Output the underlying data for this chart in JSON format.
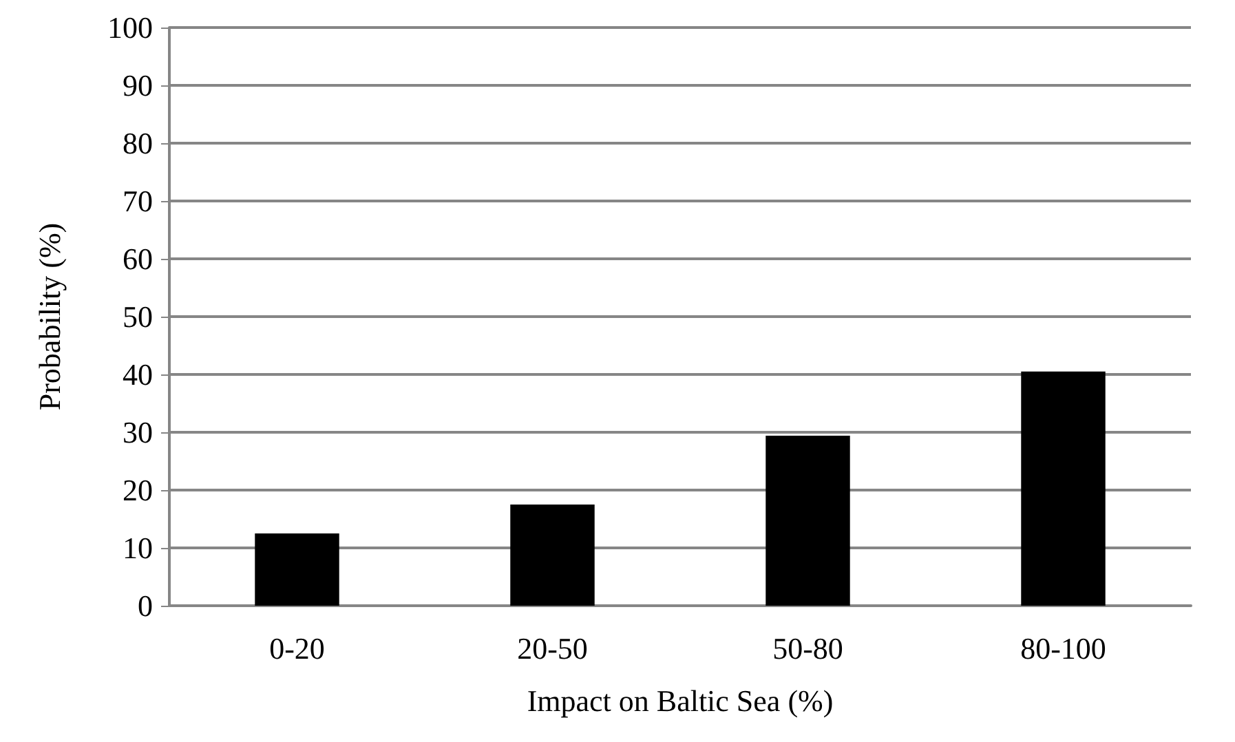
{
  "chart_data": {
    "type": "bar",
    "xlabel": "Impact on Baltic Sea (%)",
    "ylabel": "Probability (%)",
    "categories": [
      "0-20",
      "20-50",
      "50-80",
      "80-100"
    ],
    "values": [
      12.5,
      17.5,
      29.4,
      40.5
    ],
    "color": "#000000",
    "ylim": [
      0,
      100
    ],
    "yticks": [
      0,
      10,
      20,
      30,
      40,
      50,
      60,
      70,
      80,
      90,
      100
    ],
    "grid": "y"
  }
}
